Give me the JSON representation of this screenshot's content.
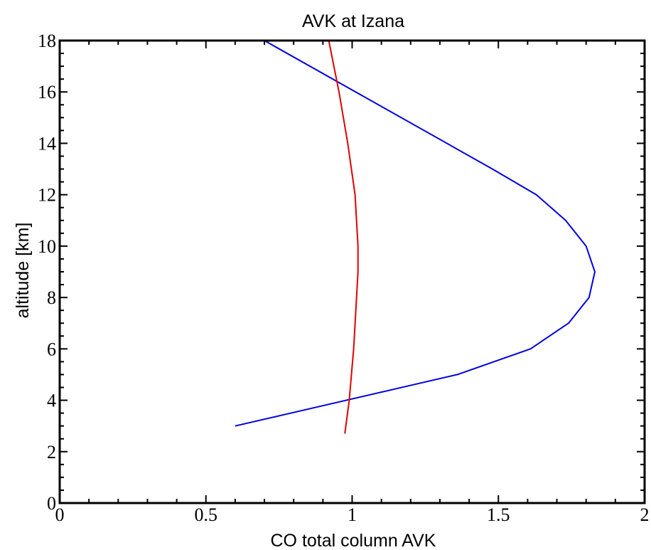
{
  "chart_data": {
    "type": "line",
    "title": "AVK at Izana",
    "xlabel": "CO total column AVK",
    "ylabel": "altitude [km]",
    "xlim": [
      0,
      2
    ],
    "ylim": [
      0,
      18
    ],
    "x_ticks": [
      "0",
      "0.5",
      "1",
      "1.5",
      "2"
    ],
    "y_ticks": [
      "0",
      "2",
      "4",
      "6",
      "8",
      "10",
      "12",
      "14",
      "16",
      "18"
    ],
    "grid": false,
    "legend": "none",
    "series": [
      {
        "color": "#0000e0",
        "x": [
          0.6,
          1.36,
          1.61,
          1.74,
          1.81,
          1.83,
          1.8,
          1.73,
          1.63,
          1.48,
          0.7
        ],
        "y": [
          3,
          5,
          6,
          7,
          8,
          9,
          10,
          11,
          12,
          13,
          18
        ]
      },
      {
        "color": "#e00000",
        "x": [
          0.975,
          0.99,
          1.005,
          1.015,
          1.02,
          1.02,
          1.01,
          0.985,
          0.955,
          0.92
        ],
        "y": [
          2.7,
          4,
          6,
          8,
          9,
          10,
          12,
          14,
          16,
          18
        ]
      }
    ]
  }
}
